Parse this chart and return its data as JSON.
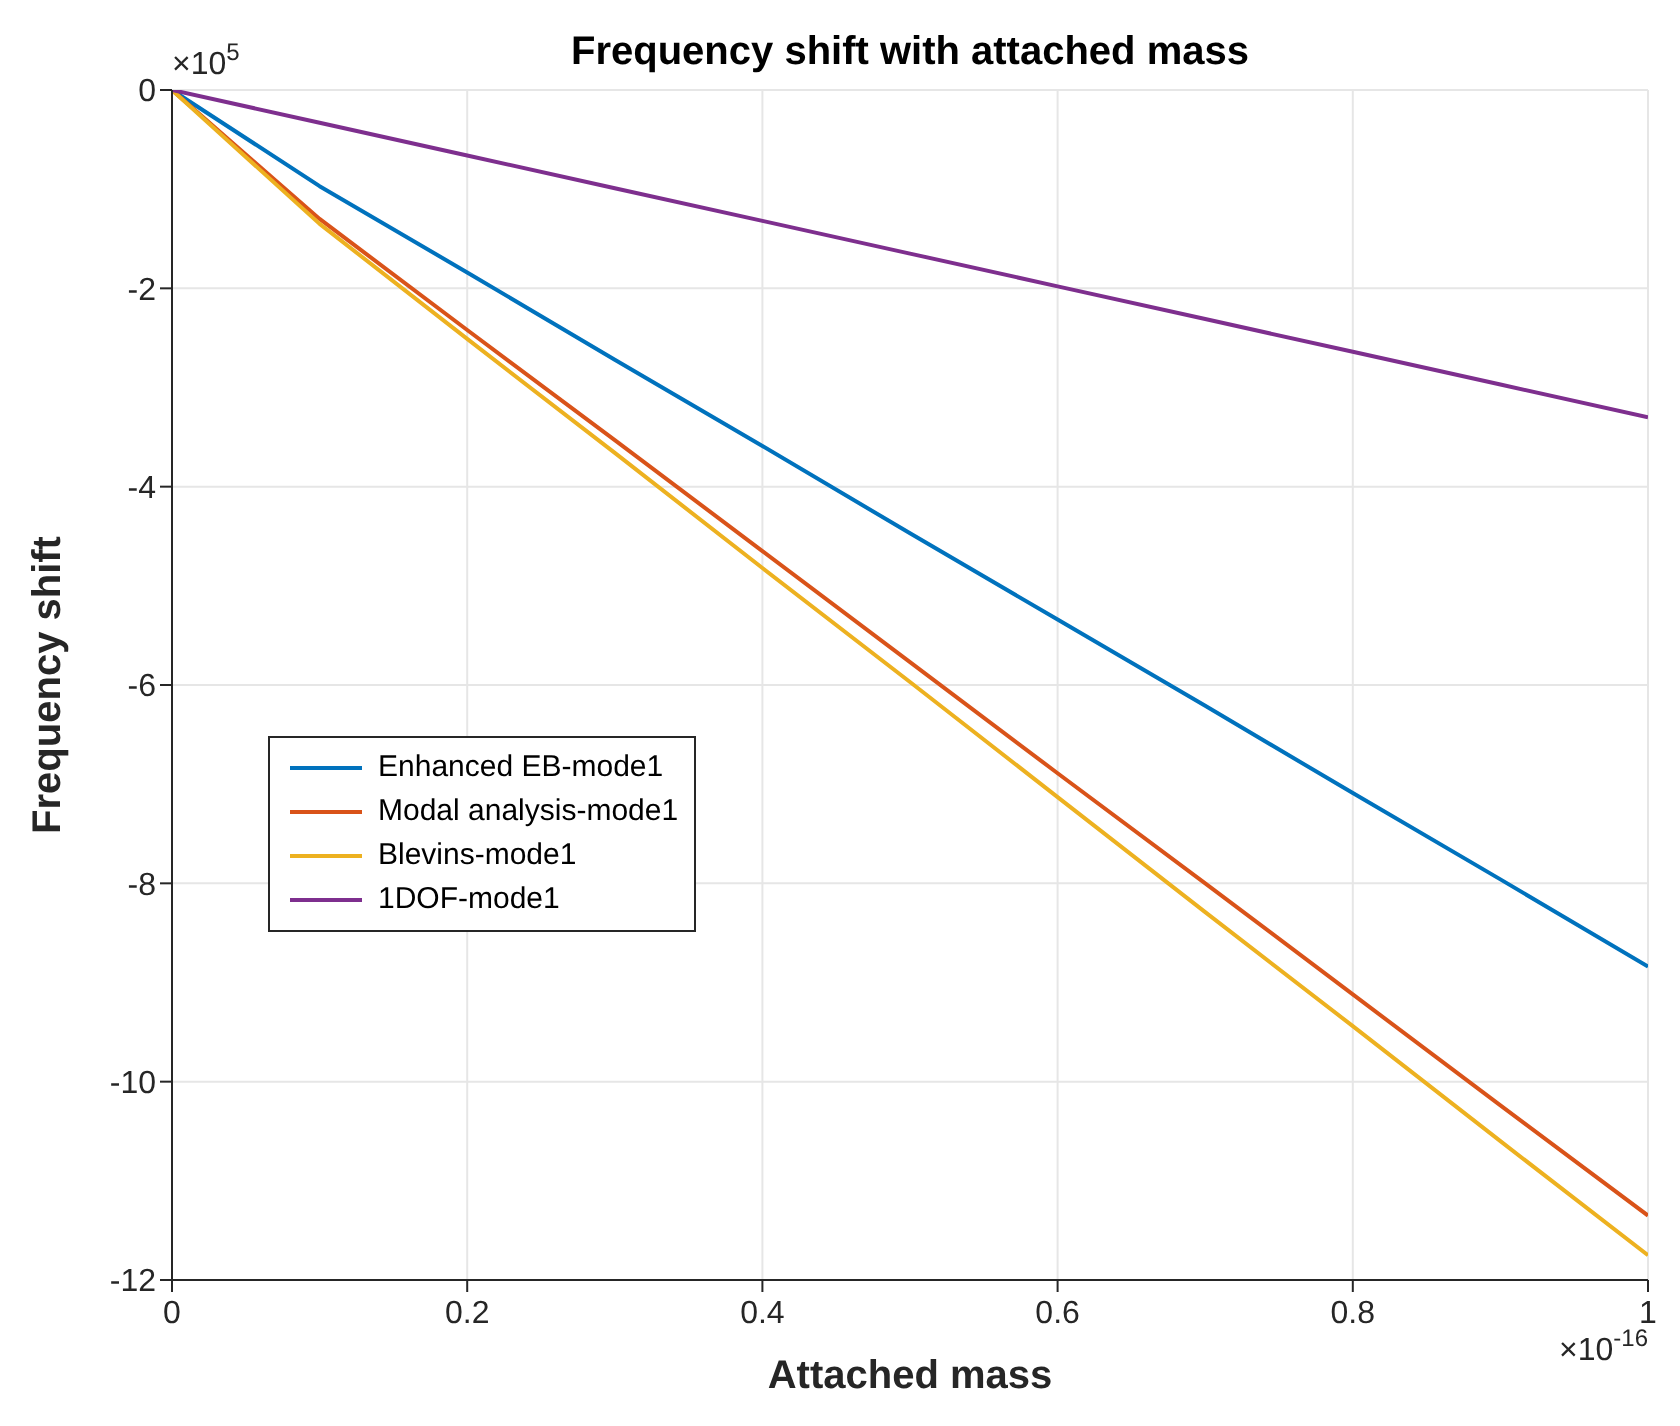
{
  "chart_data": {
    "type": "line",
    "title": "Frequency shift with attached mass",
    "xlabel": "Attached mass",
    "ylabel": "Frequency shift",
    "annotations": [
      "×10$^{5}$",
      "×10$^{-16}$"
    ],
    "x": [
      0,
      0.1,
      0.2,
      0.3,
      0.4,
      0.5,
      0.6,
      0.7,
      0.8,
      0.9,
      1
    ],
    "series": [
      {
        "name": "Enhanced EB-mode1",
        "color": "#0072bd",
        "values": [
          0,
          -0.97,
          -1.84,
          -2.72,
          -3.59,
          -4.47,
          -5.34,
          -6.21,
          -7.09,
          -7.96,
          -8.84
        ]
      },
      {
        "name": "Modal analysis-mode1",
        "color": "#d95319",
        "values": [
          0,
          -1.3,
          -2.42,
          -3.53,
          -4.65,
          -5.77,
          -6.89,
          -8.0,
          -9.12,
          -10.24,
          -11.35
        ]
      },
      {
        "name": "Blevins-mode1",
        "color": "#edb120",
        "values": [
          0,
          -1.35,
          -2.51,
          -3.66,
          -4.82,
          -5.97,
          -7.13,
          -8.29,
          -9.44,
          -10.6,
          -11.75
        ]
      },
      {
        "name": "1DOF-mode1",
        "color": "#7e2f8e",
        "values": [
          0,
          -0.33,
          -0.66,
          -0.99,
          -1.32,
          -1.65,
          -1.98,
          -2.31,
          -2.64,
          -2.97,
          -3.3
        ]
      }
    ],
    "xlim": [
      0,
      1
    ],
    "xticks": [
      0,
      0.2,
      0.4,
      0.6,
      0.8,
      1
    ],
    "ylim": [
      -12,
      0
    ],
    "yticks": [
      -12,
      -10,
      -8,
      -6,
      -4,
      -2,
      0
    ],
    "grid": true,
    "legend": "center left",
    "marker": "none",
    "line_style": "solid"
  }
}
